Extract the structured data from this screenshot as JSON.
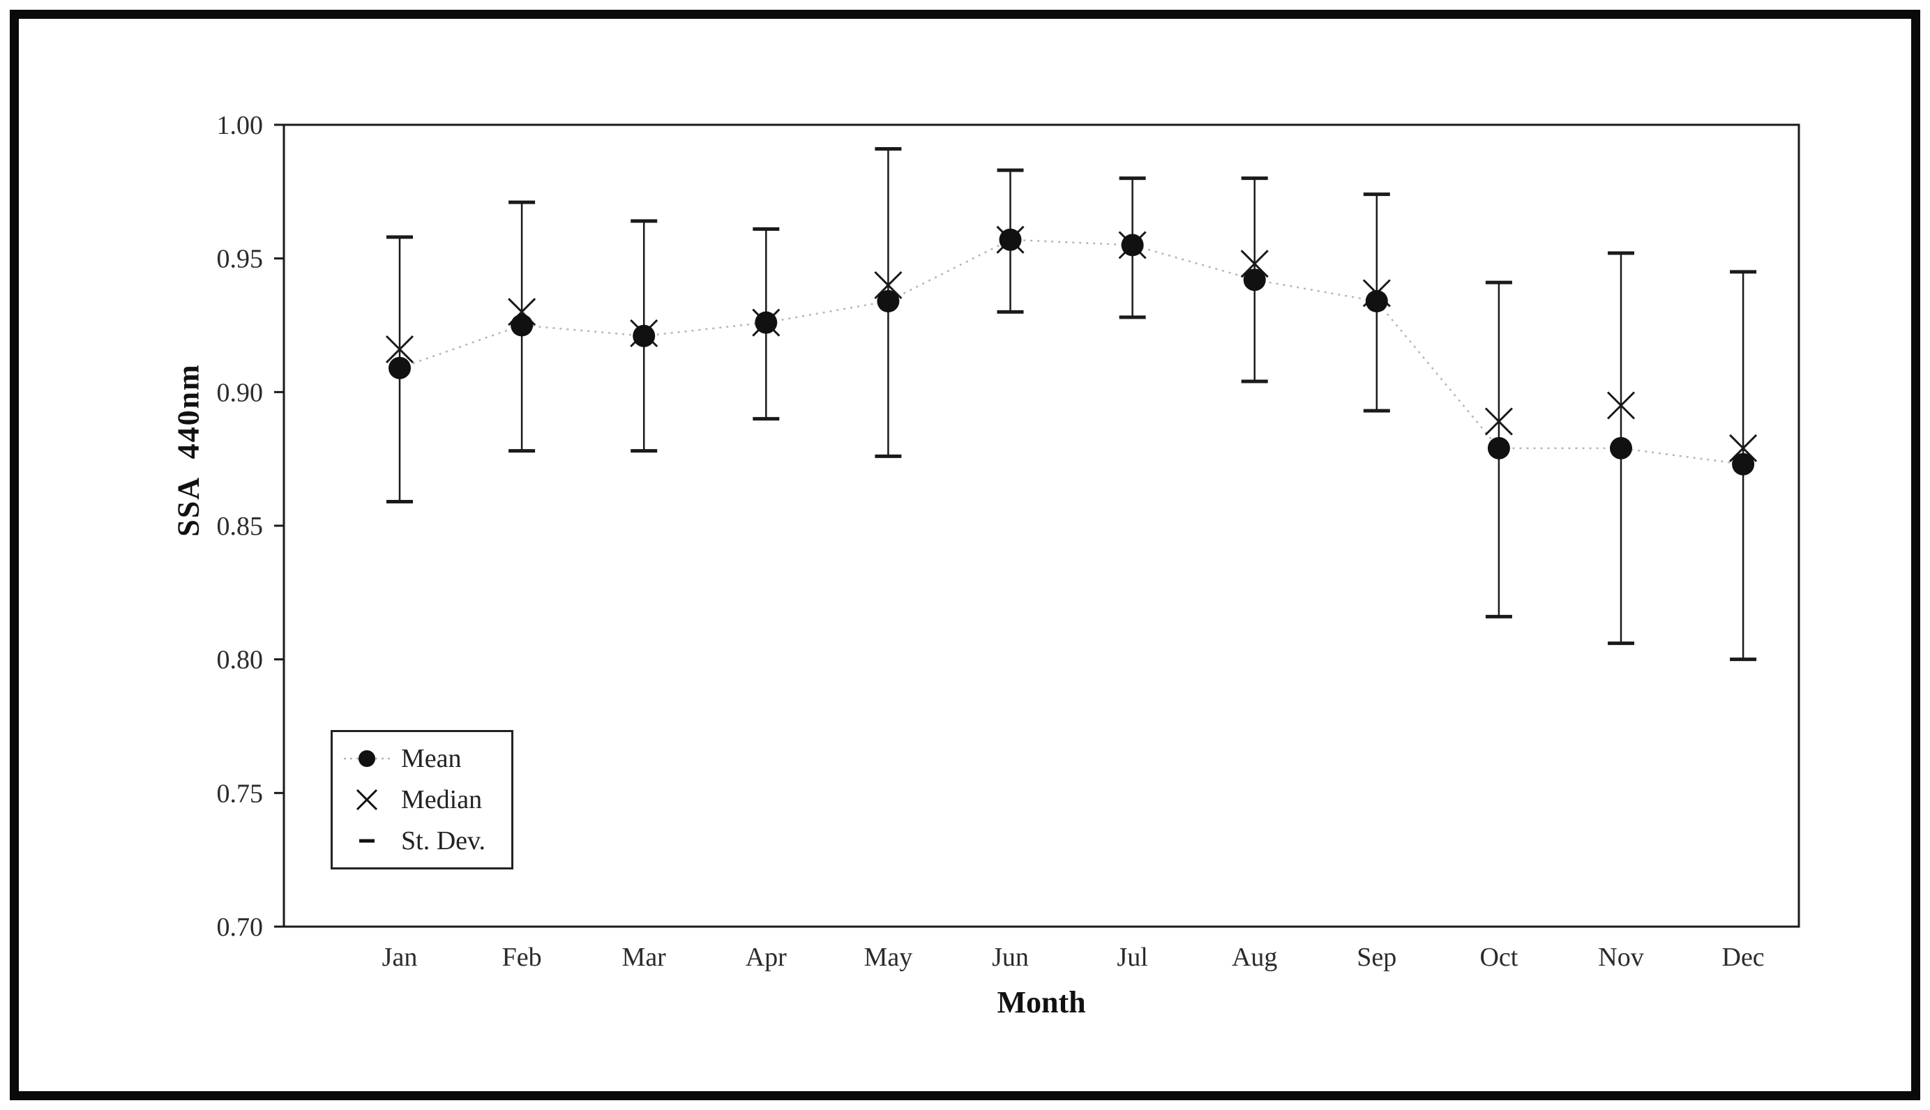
{
  "figure": {
    "background": "#ffffff",
    "frame_color": "#0a0a0a"
  },
  "chart_data": {
    "type": "scatter",
    "title": "",
    "xlabel": "Month",
    "ylabel": "SSA 440nm",
    "ylim": [
      0.7,
      1.0
    ],
    "yticks": [
      0.7,
      0.75,
      0.8,
      0.85,
      0.9,
      0.95,
      1.0
    ],
    "grid": false,
    "categories": [
      "Jan",
      "Feb",
      "Mar",
      "Apr",
      "May",
      "Jun",
      "Jul",
      "Aug",
      "Sep",
      "Oct",
      "Nov",
      "Dec"
    ],
    "series": [
      {
        "name": "Mean",
        "marker": "filled-circle",
        "values": [
          0.909,
          0.925,
          0.921,
          0.926,
          0.934,
          0.957,
          0.955,
          0.942,
          0.934,
          0.879,
          0.879,
          0.873
        ]
      },
      {
        "name": "Median",
        "marker": "x",
        "values": [
          0.916,
          0.93,
          0.922,
          0.926,
          0.94,
          0.957,
          0.955,
          0.948,
          0.937,
          0.889,
          0.895,
          0.879
        ]
      },
      {
        "name": "St. Dev. upper",
        "marker": "cap",
        "values": [
          0.958,
          0.971,
          0.964,
          0.961,
          0.991,
          0.983,
          0.98,
          0.98,
          0.974,
          0.941,
          0.952,
          0.945
        ]
      },
      {
        "name": "St. Dev. lower",
        "marker": "cap",
        "values": [
          0.859,
          0.878,
          0.878,
          0.89,
          0.876,
          0.93,
          0.928,
          0.904,
          0.893,
          0.816,
          0.806,
          0.8
        ]
      }
    ],
    "legend": {
      "position": "bottom-left",
      "items": [
        {
          "label": "Mean"
        },
        {
          "label": "Median"
        },
        {
          "label": "St. Dev."
        }
      ]
    },
    "colors": {
      "marker": "#111111",
      "axis": "#1a1a1a",
      "connector": "#b5b5b5"
    }
  }
}
